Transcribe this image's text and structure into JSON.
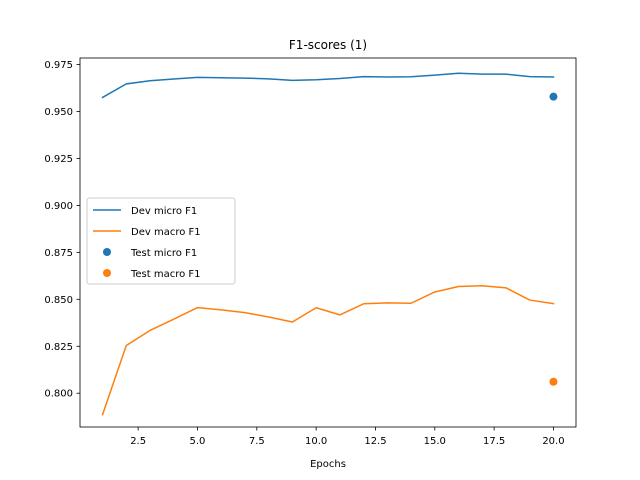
{
  "chart_data": {
    "type": "line",
    "title": "F1-scores (1)",
    "xlabel": "Epochs",
    "ylabel": "",
    "xlim": [
      0.05,
      20.95
    ],
    "ylim": [
      0.782,
      0.9785
    ],
    "xticks": [
      2.5,
      5.0,
      7.5,
      10.0,
      12.5,
      15.0,
      17.5,
      20.0
    ],
    "xtick_labels": [
      "2.5",
      "5.0",
      "7.5",
      "10.0",
      "12.5",
      "15.0",
      "17.5",
      "20.0"
    ],
    "yticks": [
      0.8,
      0.825,
      0.85,
      0.875,
      0.9,
      0.925,
      0.95,
      0.975
    ],
    "ytick_labels": [
      "0.800",
      "0.825",
      "0.850",
      "0.875",
      "0.900",
      "0.925",
      "0.950",
      "0.975"
    ],
    "grid": false,
    "legend_position": "center-left",
    "x": [
      1,
      2,
      3,
      4,
      5,
      6,
      7,
      8,
      9,
      10,
      11,
      12,
      13,
      14,
      15,
      16,
      17,
      18,
      19,
      20
    ],
    "series": [
      {
        "name": "Dev micro F1",
        "kind": "line",
        "color": "#1f77b4",
        "values": [
          0.9575,
          0.9647,
          0.9664,
          0.9673,
          0.9682,
          0.968,
          0.9678,
          0.9674,
          0.9666,
          0.9669,
          0.9676,
          0.9686,
          0.9684,
          0.9685,
          0.9694,
          0.9704,
          0.9699,
          0.9699,
          0.9686,
          0.9684
        ]
      },
      {
        "name": "Dev macro F1",
        "kind": "line",
        "color": "#ff7f0e",
        "values": [
          0.7886,
          0.8254,
          0.8334,
          0.8394,
          0.8456,
          0.8444,
          0.8429,
          0.8406,
          0.8379,
          0.8455,
          0.8417,
          0.8476,
          0.8481,
          0.8479,
          0.8539,
          0.8568,
          0.8572,
          0.8561,
          0.8496,
          0.8477
        ]
      },
      {
        "name": "Test micro F1",
        "kind": "scatter",
        "color": "#1f77b4",
        "points": [
          {
            "x": 20,
            "y": 0.9579
          }
        ]
      },
      {
        "name": "Test macro F1",
        "kind": "scatter",
        "color": "#ff7f0e",
        "points": [
          {
            "x": 20,
            "y": 0.8061
          }
        ]
      }
    ]
  }
}
